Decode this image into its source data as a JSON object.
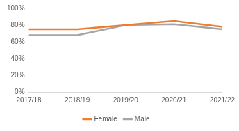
{
  "chart_data": {
    "type": "line",
    "categories": [
      "2017/18",
      "2018/19",
      "2019/20",
      "2020/21",
      "2021/22"
    ],
    "series": [
      {
        "name": "Female",
        "color": "#ed7d31",
        "values": [
          75,
          75,
          80,
          85,
          78
        ]
      },
      {
        "name": "Male",
        "color": "#a5a5a5",
        "values": [
          68,
          68,
          80,
          81,
          75
        ]
      }
    ],
    "ylim": [
      0,
      100
    ],
    "yticks": [
      {
        "value": 0,
        "label": "0%"
      },
      {
        "value": 20,
        "label": "20%"
      },
      {
        "value": 40,
        "label": "40%"
      },
      {
        "value": 60,
        "label": "60%"
      },
      {
        "value": 80,
        "label": "80%"
      },
      {
        "value": 100,
        "label": "100%"
      }
    ],
    "grid": false,
    "legend": "bottom"
  }
}
